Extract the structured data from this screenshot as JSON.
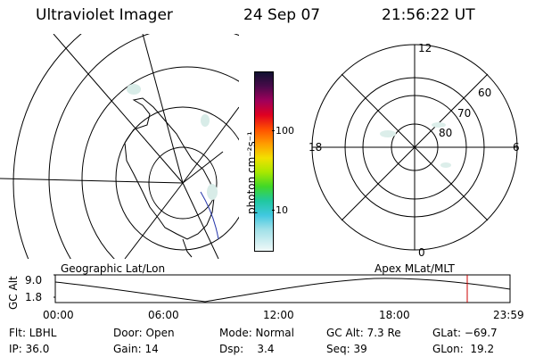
{
  "header": {
    "instrument": "Ultraviolet Imager",
    "date": "24 Sep 07",
    "time": "21:56:22 UT"
  },
  "colorbar": {
    "unit_label": "photon cm⁻²s⁻¹",
    "ticks": [
      "100",
      "10"
    ]
  },
  "polar_plot": {
    "mlt_labels": {
      "top": "12",
      "left": "18",
      "right": "6",
      "bottom": "0"
    },
    "lat_labels": [
      "60",
      "70",
      "80"
    ]
  },
  "orbit_panel": {
    "left_title": "Geographic Lat/Lon",
    "right_title": "Apex MLat/MLT",
    "y_axis_label": "GC Alt",
    "y_ticks": [
      "9.0",
      "1.8"
    ],
    "x_ticks": [
      "00:00",
      "06:00",
      "12:00",
      "18:00",
      "23:59"
    ],
    "marker_color": "#cc0000"
  },
  "status": {
    "row1": {
      "filter": "Flt: LBHL",
      "door": "Door: Open",
      "mode": "Mode: Normal",
      "gc_alt": "GC Alt: 7.3 Re",
      "glat": "GLat: −69.7"
    },
    "row2": {
      "ip": "IP: 36.0",
      "gain": "Gain: 14",
      "dsp": "Dsp:    3.4",
      "seq": "Seq: 39",
      "glon": "GLon:  19.2"
    }
  }
}
